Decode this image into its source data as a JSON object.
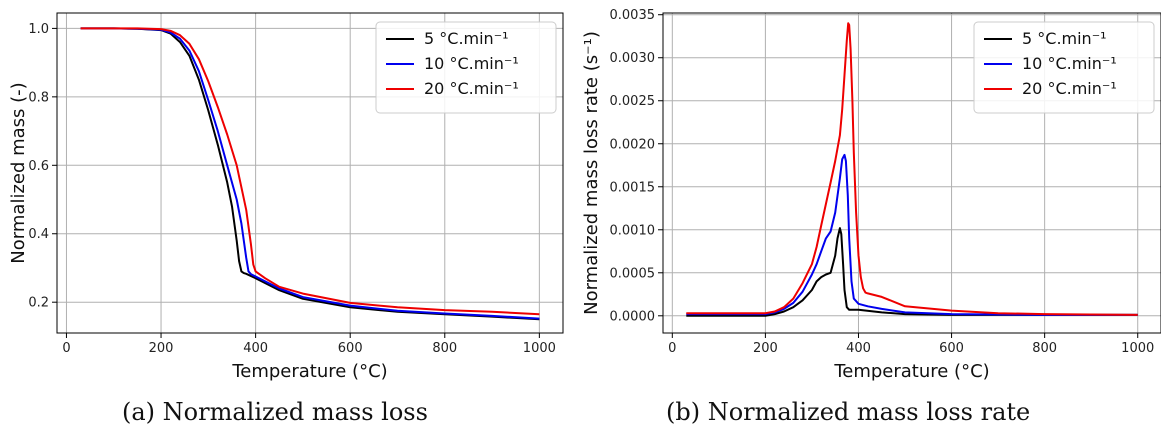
{
  "captions": [
    "(a) Normalized mass loss",
    "(b) Normalized mass loss rate"
  ],
  "colors": {
    "5": "#000000",
    "10": "#0000ee",
    "20": "#ee0000",
    "grid": "#b0b0b0"
  },
  "chart_data": [
    {
      "type": "line",
      "title": "",
      "xlabel": "Temperature (°C)",
      "ylabel": "Normalized mass (-)",
      "xlim": [
        -20,
        1050
      ],
      "ylim": [
        0.11,
        1.045
      ],
      "xticks": [
        0,
        200,
        400,
        600,
        800,
        1000
      ],
      "xtick_labels": [
        "0",
        "200",
        "400",
        "600",
        "800",
        "1000"
      ],
      "yticks": [
        0.2,
        0.4,
        0.6,
        0.8,
        1.0
      ],
      "ytick_labels": [
        "0.2",
        "0.4",
        "0.6",
        "0.8",
        "1.0"
      ],
      "grid": true,
      "legend_position": "top-right",
      "series": [
        {
          "name": "5 °C.min⁻¹",
          "color": "#000000",
          "x": [
            30,
            100,
            150,
            200,
            220,
            240,
            260,
            280,
            300,
            320,
            340,
            350,
            360,
            365,
            370,
            375,
            380,
            400,
            450,
            500,
            600,
            700,
            800,
            900,
            1000
          ],
          "y": [
            1.0,
            1.0,
            0.999,
            0.995,
            0.985,
            0.96,
            0.92,
            0.85,
            0.76,
            0.66,
            0.55,
            0.48,
            0.38,
            0.32,
            0.29,
            0.285,
            0.283,
            0.27,
            0.235,
            0.21,
            0.185,
            0.172,
            0.165,
            0.158,
            0.15
          ]
        },
        {
          "name": "10 °C.min⁻¹",
          "color": "#0000ee",
          "x": [
            30,
            100,
            150,
            200,
            220,
            240,
            260,
            280,
            300,
            320,
            340,
            360,
            370,
            375,
            380,
            385,
            390,
            400,
            450,
            500,
            600,
            700,
            800,
            900,
            1000
          ],
          "y": [
            1.0,
            1.0,
            0.999,
            0.996,
            0.988,
            0.97,
            0.935,
            0.875,
            0.79,
            0.7,
            0.6,
            0.5,
            0.43,
            0.38,
            0.33,
            0.29,
            0.282,
            0.275,
            0.24,
            0.215,
            0.19,
            0.175,
            0.167,
            0.16,
            0.152
          ]
        },
        {
          "name": "20 °C.min⁻¹",
          "color": "#ee0000",
          "x": [
            30,
            100,
            150,
            200,
            220,
            240,
            260,
            280,
            300,
            320,
            340,
            360,
            380,
            390,
            395,
            400,
            420,
            450,
            500,
            600,
            700,
            800,
            900,
            1000
          ],
          "y": [
            1.0,
            1.0,
            1.0,
            0.998,
            0.993,
            0.98,
            0.955,
            0.91,
            0.845,
            0.77,
            0.69,
            0.6,
            0.47,
            0.37,
            0.31,
            0.29,
            0.27,
            0.245,
            0.225,
            0.198,
            0.185,
            0.177,
            0.172,
            0.165
          ]
        }
      ]
    },
    {
      "type": "line",
      "title": "",
      "xlabel": "Temperature (°C)",
      "ylabel": "Normalized mass loss rate (s⁻¹)",
      "xlim": [
        -20,
        1050
      ],
      "ylim": [
        -0.0002,
        0.00352
      ],
      "xticks": [
        0,
        200,
        400,
        600,
        800,
        1000
      ],
      "xtick_labels": [
        "0",
        "200",
        "400",
        "600",
        "800",
        "1000"
      ],
      "yticks": [
        0,
        0.0005,
        0.001,
        0.0015,
        0.002,
        0.0025,
        0.003,
        0.0035
      ],
      "ytick_labels": [
        "0.0000",
        "0.0005",
        "0.0010",
        "0.0015",
        "0.0020",
        "0.0025",
        "0.0030",
        "0.0035"
      ],
      "grid": true,
      "legend_position": "top-right",
      "series": [
        {
          "name": "5 °C.min⁻¹",
          "color": "#000000",
          "x": [
            30,
            200,
            220,
            240,
            260,
            280,
            300,
            310,
            320,
            330,
            340,
            350,
            355,
            360,
            363,
            367,
            370,
            375,
            380,
            400,
            450,
            500,
            600,
            800,
            1000
          ],
          "y": [
            0.0,
            0.0,
            2e-05,
            5e-05,
            0.0001,
            0.00018,
            0.0003,
            0.0004,
            0.00045,
            0.00048,
            0.0005,
            0.0007,
            0.0009,
            0.00102,
            0.00095,
            0.0006,
            0.0003,
            0.0001,
            7e-05,
            7e-05,
            4e-05,
            2e-05,
            1e-05,
            1e-05,
            1e-05
          ]
        },
        {
          "name": "10 °C.min⁻¹",
          "color": "#0000ee",
          "x": [
            30,
            200,
            220,
            240,
            260,
            280,
            300,
            310,
            320,
            330,
            340,
            350,
            360,
            365,
            370,
            373,
            377,
            380,
            385,
            390,
            400,
            420,
            450,
            500,
            600,
            800,
            1000
          ],
          "y": [
            2e-05,
            2e-05,
            4e-05,
            8e-05,
            0.00015,
            0.00028,
            0.00048,
            0.0006,
            0.00075,
            0.0009,
            0.00098,
            0.0012,
            0.0016,
            0.00182,
            0.00187,
            0.0018,
            0.0014,
            0.0009,
            0.0004,
            0.0002,
            0.00014,
            0.00011,
            8e-05,
            4e-05,
            2e-05,
            1e-05,
            1e-05
          ]
        },
        {
          "name": "20 °C.min⁻¹",
          "color": "#ee0000",
          "x": [
            30,
            200,
            220,
            240,
            260,
            280,
            300,
            310,
            320,
            330,
            340,
            350,
            360,
            365,
            370,
            375,
            378,
            380,
            383,
            387,
            390,
            395,
            400,
            405,
            410,
            415,
            420,
            450,
            500,
            600,
            700,
            800,
            1000
          ],
          "y": [
            3e-05,
            3e-05,
            5e-05,
            0.0001,
            0.0002,
            0.00038,
            0.0006,
            0.0008,
            0.00105,
            0.0013,
            0.00155,
            0.0018,
            0.0021,
            0.0024,
            0.0028,
            0.0032,
            0.0034,
            0.00338,
            0.0031,
            0.0025,
            0.0019,
            0.0012,
            0.0007,
            0.00045,
            0.00032,
            0.00027,
            0.00026,
            0.00022,
            0.00011,
            6e-05,
            3e-05,
            2e-05,
            1e-05
          ]
        }
      ]
    }
  ]
}
